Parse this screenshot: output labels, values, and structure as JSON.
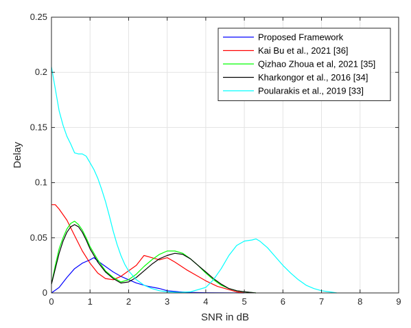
{
  "chart_data": {
    "type": "line",
    "title": "",
    "xlabel": "SNR in dB",
    "ylabel": "Delay",
    "xlim": [
      0,
      9
    ],
    "ylim": [
      0,
      0.25
    ],
    "x_ticks": [
      "0",
      "1",
      "2",
      "3",
      "4",
      "5",
      "6",
      "7",
      "8",
      "9"
    ],
    "y_ticks": [
      "0",
      "0.05",
      "0.1",
      "0.15",
      "0.2",
      "0.25"
    ],
    "grid": true,
    "legend_position": "top-right",
    "series": [
      {
        "name": "Proposed Framework",
        "color": "#0000ff",
        "x": [
          0,
          0.2,
          0.4,
          0.6,
          0.8,
          1.0,
          1.1,
          1.2,
          1.4,
          1.6,
          1.8,
          2.0,
          2.2,
          2.5,
          2.8,
          3.0,
          3.3,
          3.6,
          4.0,
          4.5,
          5.0
        ],
        "y": [
          0.0,
          0.005,
          0.014,
          0.022,
          0.027,
          0.03,
          0.032,
          0.029,
          0.024,
          0.019,
          0.015,
          0.012,
          0.009,
          0.006,
          0.004,
          0.002,
          0.001,
          0.0005,
          0.0002,
          0.0001,
          0.0
        ]
      },
      {
        "name": "Kai Bu et al., 2021 [36]",
        "color": "#ff0000",
        "x": [
          0,
          0.1,
          0.2,
          0.4,
          0.6,
          0.8,
          1.0,
          1.2,
          1.4,
          1.6,
          1.8,
          2.0,
          2.2,
          2.4,
          2.6,
          2.8,
          3.0,
          3.2,
          3.5,
          3.8,
          4.0,
          4.3,
          4.6,
          4.8,
          5.0
        ],
        "y": [
          0.08,
          0.08,
          0.076,
          0.066,
          0.052,
          0.038,
          0.027,
          0.018,
          0.013,
          0.012,
          0.015,
          0.02,
          0.025,
          0.034,
          0.032,
          0.03,
          0.032,
          0.028,
          0.021,
          0.015,
          0.011,
          0.006,
          0.003,
          0.001,
          0.0
        ]
      },
      {
        "name": "Qizhao Zhoua et al, 2021 [35]",
        "color": "#00ff00",
        "x": [
          0,
          0.1,
          0.2,
          0.3,
          0.4,
          0.5,
          0.6,
          0.7,
          0.8,
          0.9,
          1.0,
          1.2,
          1.4,
          1.6,
          1.8,
          2.0,
          2.2,
          2.4,
          2.6,
          2.8,
          3.0,
          3.2,
          3.4,
          3.6,
          3.8,
          4.0,
          4.2,
          4.4,
          4.6,
          4.8,
          5.0,
          5.3
        ],
        "y": [
          0.008,
          0.025,
          0.04,
          0.05,
          0.058,
          0.063,
          0.065,
          0.062,
          0.057,
          0.05,
          0.042,
          0.03,
          0.02,
          0.014,
          0.01,
          0.012,
          0.017,
          0.024,
          0.03,
          0.035,
          0.038,
          0.038,
          0.036,
          0.031,
          0.025,
          0.018,
          0.012,
          0.007,
          0.004,
          0.002,
          0.001,
          0.0
        ]
      },
      {
        "name": "Kharkongor et al., 2016 [34]",
        "color": "#000000",
        "x": [
          0,
          0.1,
          0.2,
          0.3,
          0.4,
          0.5,
          0.6,
          0.7,
          0.8,
          0.9,
          1.0,
          1.2,
          1.4,
          1.6,
          1.8,
          2.0,
          2.2,
          2.4,
          2.6,
          2.8,
          3.0,
          3.2,
          3.4,
          3.6,
          3.8,
          4.0,
          4.2,
          4.4,
          4.6,
          4.8,
          5.0,
          5.3
        ],
        "y": [
          0.008,
          0.022,
          0.036,
          0.047,
          0.055,
          0.06,
          0.062,
          0.06,
          0.055,
          0.048,
          0.04,
          0.028,
          0.019,
          0.013,
          0.009,
          0.01,
          0.014,
          0.02,
          0.026,
          0.031,
          0.034,
          0.036,
          0.035,
          0.031,
          0.025,
          0.019,
          0.013,
          0.008,
          0.004,
          0.002,
          0.001,
          0.0
        ]
      },
      {
        "name": "Poularakis et al., 2019 [33]",
        "color": "#00ffff",
        "x": [
          0,
          0.1,
          0.2,
          0.3,
          0.4,
          0.5,
          0.6,
          0.7,
          0.8,
          0.9,
          1.0,
          1.1,
          1.2,
          1.3,
          1.4,
          1.5,
          1.6,
          1.7,
          1.8,
          1.9,
          2.0,
          2.2,
          2.4,
          2.6,
          2.8,
          3.0,
          3.3,
          3.6,
          4.0,
          4.2,
          4.4,
          4.6,
          4.8,
          5.0,
          5.2,
          5.3,
          5.4,
          5.6,
          5.8,
          6.0,
          6.2,
          6.4,
          6.6,
          6.8,
          7.0,
          7.2,
          7.4
        ],
        "y": [
          0.205,
          0.185,
          0.165,
          0.152,
          0.142,
          0.135,
          0.127,
          0.126,
          0.126,
          0.124,
          0.118,
          0.112,
          0.104,
          0.094,
          0.083,
          0.07,
          0.056,
          0.044,
          0.034,
          0.026,
          0.02,
          0.012,
          0.007,
          0.004,
          0.002,
          0.001,
          0.0005,
          0.001,
          0.005,
          0.012,
          0.022,
          0.034,
          0.043,
          0.047,
          0.048,
          0.049,
          0.047,
          0.041,
          0.033,
          0.025,
          0.018,
          0.012,
          0.007,
          0.004,
          0.002,
          0.001,
          0.0
        ]
      }
    ]
  }
}
